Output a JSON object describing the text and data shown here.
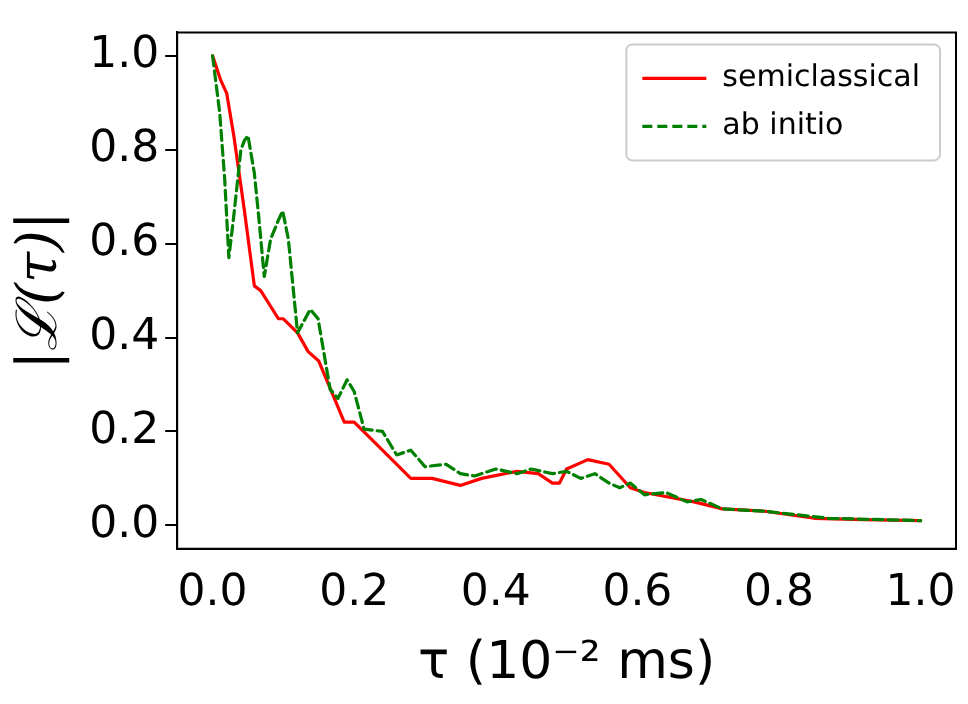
{
  "chart_data": {
    "type": "line",
    "xlabel": "τ (10⁻² ms)",
    "ylabel": "|ℒ(τ)|",
    "xlim": [
      -0.05,
      1.05
    ],
    "ylim": [
      -0.05,
      1.05
    ],
    "xticks": [
      {
        "value": 0,
        "label": "0.0"
      },
      {
        "value": 0.2,
        "label": "0.2"
      },
      {
        "value": 0.4,
        "label": "0.4"
      },
      {
        "value": 0.6,
        "label": "0.6"
      },
      {
        "value": 0.8,
        "label": "0.8"
      },
      {
        "value": 1,
        "label": "1.0"
      }
    ],
    "yticks": [
      {
        "value": 0,
        "label": "0.0"
      },
      {
        "value": 0.2,
        "label": "0.2"
      },
      {
        "value": 0.4,
        "label": "0.4"
      },
      {
        "value": 0.6,
        "label": "0.6"
      },
      {
        "value": 0.8,
        "label": "0.8"
      },
      {
        "value": 1,
        "label": "1.0"
      }
    ],
    "grid": false,
    "legend": "top right",
    "marker": "none",
    "series": [
      {
        "name": "semiclassical",
        "color": "#ff0000",
        "line_style": "solid",
        "x": [
          0,
          0.011,
          0.02,
          0.03,
          0.045,
          0.059,
          0.068,
          0.093,
          0.1,
          0.12,
          0.135,
          0.15,
          0.186,
          0.2,
          0.22,
          0.28,
          0.31,
          0.35,
          0.38,
          0.43,
          0.46,
          0.48,
          0.49,
          0.5,
          0.53,
          0.56,
          0.59,
          0.61,
          0.68,
          0.72,
          0.78,
          0.85,
          0.92,
          1.0
        ],
        "values": [
          1.0,
          0.95,
          0.92,
          0.83,
          0.67,
          0.51,
          0.5,
          0.44,
          0.44,
          0.41,
          0.37,
          0.35,
          0.22,
          0.22,
          0.19,
          0.1,
          0.1,
          0.085,
          0.1,
          0.115,
          0.11,
          0.09,
          0.09,
          0.12,
          0.14,
          0.13,
          0.08,
          0.07,
          0.05,
          0.035,
          0.03,
          0.015,
          0.012,
          0.01
        ]
      },
      {
        "name": "ab initio",
        "color": "#008000",
        "line_style": "dashed",
        "x": [
          0,
          0.005,
          0.01,
          0.017,
          0.023,
          0.03,
          0.04,
          0.045,
          0.05,
          0.059,
          0.065,
          0.073,
          0.082,
          0.093,
          0.099,
          0.107,
          0.12,
          0.138,
          0.149,
          0.166,
          0.177,
          0.19,
          0.2,
          0.214,
          0.24,
          0.26,
          0.28,
          0.3,
          0.33,
          0.35,
          0.37,
          0.4,
          0.43,
          0.45,
          0.48,
          0.5,
          0.52,
          0.54,
          0.56,
          0.575,
          0.59,
          0.61,
          0.64,
          0.67,
          0.69,
          0.72,
          0.78,
          0.87,
          1.0
        ],
        "values": [
          1.0,
          0.94,
          0.88,
          0.74,
          0.57,
          0.66,
          0.8,
          0.82,
          0.83,
          0.75,
          0.66,
          0.53,
          0.61,
          0.65,
          0.67,
          0.61,
          0.41,
          0.46,
          0.44,
          0.29,
          0.27,
          0.31,
          0.285,
          0.205,
          0.2,
          0.15,
          0.16,
          0.125,
          0.13,
          0.11,
          0.105,
          0.12,
          0.11,
          0.12,
          0.11,
          0.115,
          0.1,
          0.11,
          0.09,
          0.08,
          0.09,
          0.065,
          0.07,
          0.05,
          0.055,
          0.035,
          0.03,
          0.015,
          0.01
        ]
      }
    ]
  }
}
